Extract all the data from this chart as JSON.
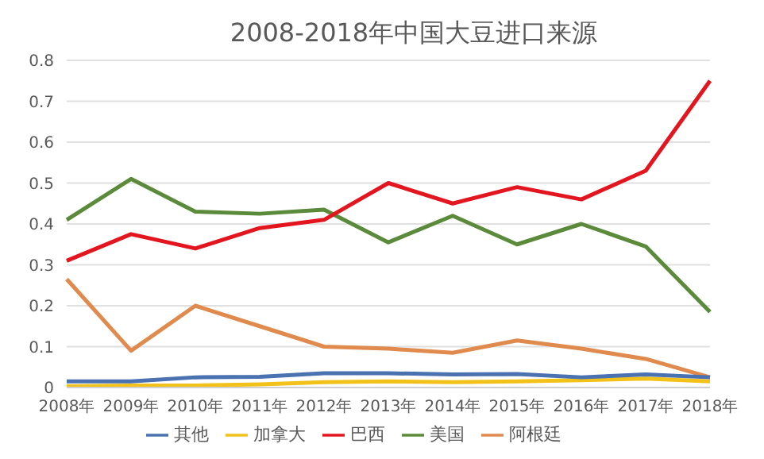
{
  "chart_data": {
    "type": "line",
    "title": "2008-2018年中国大豆进口来源",
    "categories": [
      "2008年",
      "2009年",
      "2010年",
      "2011年",
      "2012年",
      "2013年",
      "2014年",
      "2015年",
      "2016年",
      "2017年",
      "2018年"
    ],
    "series": [
      {
        "name": "美国",
        "color": "#5b8a3a",
        "values": [
          0.41,
          0.51,
          0.43,
          0.425,
          0.435,
          0.355,
          0.42,
          0.35,
          0.4,
          0.345,
          0.185
        ]
      },
      {
        "name": "阿根廷",
        "color": "#e08a4e",
        "values": [
          0.265,
          0.09,
          0.2,
          0.15,
          0.1,
          0.095,
          0.085,
          0.115,
          0.095,
          0.07,
          0.025
        ]
      },
      {
        "name": "巴西",
        "color": "#e3151f",
        "values": [
          0.31,
          0.375,
          0.34,
          0.39,
          0.41,
          0.5,
          0.45,
          0.49,
          0.46,
          0.53,
          0.75
        ]
      },
      {
        "name": "加拿大",
        "color": "#f2c21b",
        "values": [
          0.003,
          0.005,
          0.005,
          0.008,
          0.013,
          0.015,
          0.013,
          0.015,
          0.018,
          0.022,
          0.015
        ]
      },
      {
        "name": "其他",
        "color": "#4a72b0",
        "values": [
          0.015,
          0.015,
          0.025,
          0.026,
          0.035,
          0.035,
          0.032,
          0.033,
          0.025,
          0.032,
          0.025
        ]
      }
    ],
    "ylim": [
      0,
      0.8
    ],
    "yticks": [
      0,
      0.1,
      0.2,
      0.3,
      0.4,
      0.5,
      0.6,
      0.7,
      0.8
    ],
    "grid": "y",
    "legend": "bottom",
    "marker": "none",
    "line_style": "solid"
  }
}
